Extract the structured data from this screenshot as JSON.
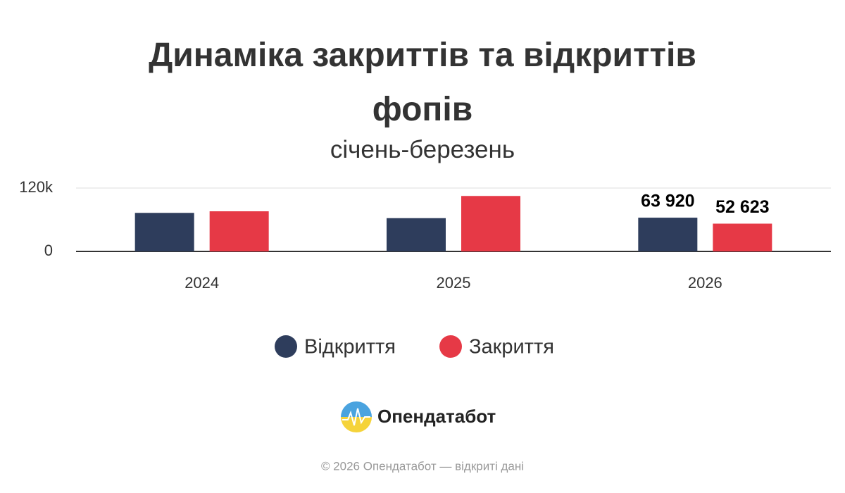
{
  "chart_data": {
    "type": "bar",
    "title": "Динаміка закриттів та відкриттів фопів",
    "subtitle": "січень-березень",
    "categories": [
      "2024",
      "2025",
      "2026"
    ],
    "series": [
      {
        "name": "Відкриття",
        "color": "#2e3d5c",
        "values": [
          73000,
          63000,
          63920
        ],
        "value_labels": [
          null,
          null,
          "63 920"
        ]
      },
      {
        "name": "Закриття",
        "color": "#e63946",
        "values": [
          76000,
          105000,
          52623
        ],
        "value_labels": [
          null,
          null,
          "52 623"
        ]
      }
    ],
    "ylim": [
      0,
      120000
    ],
    "yticks": [
      0,
      {
        "value": 120000,
        "label": "120k"
      }
    ],
    "grid": true
  },
  "footer": {
    "brand": "Опендатабот",
    "copyright": "© 2026 Опендатабот — відкриті дані"
  }
}
